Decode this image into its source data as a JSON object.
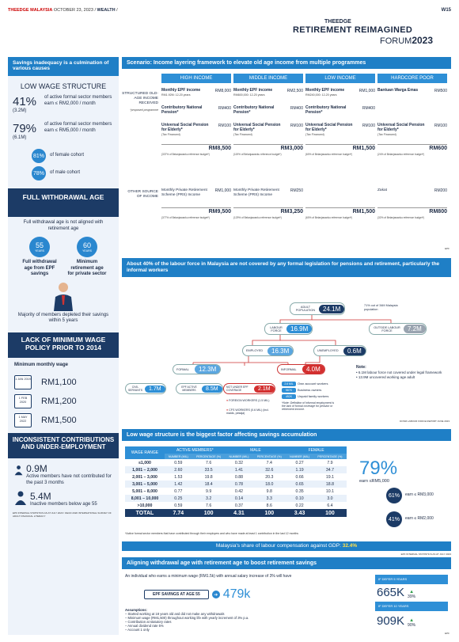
{
  "masthead": {
    "paper": "THEEDGE MALAYSIA",
    "date": "OCTOBER 23, 2023",
    "section": "WEALTH",
    "page": "W15"
  },
  "logo": {
    "brand": "THEEDGE",
    "title": "RETIREMENT REIMAGINED",
    "forum": "FORUM",
    "year": "2023"
  },
  "left": {
    "header": "Savings inadequacy is a culmination of various causes",
    "low_wage": {
      "title": "LOW WAGE STRUCTURE",
      "stat1_pct": "41%",
      "stat1_n": "(3.2M)",
      "stat1_text": "of active formal sector members earn ≤ RM2,000 / month",
      "stat2_pct": "79%",
      "stat2_n": "(6.1M)",
      "stat2_text": "of active formal sector members earn ≤ RM5,000 / month",
      "female_pct": "81%",
      "female_text": "of female cohort",
      "male_pct": "78%",
      "male_text": "of male cohort"
    },
    "withdrawal": {
      "title": "FULL WITHDRAWAL AGE",
      "text": "Full withdrawal age is not aligned with retirement age",
      "age1": "55",
      "age1_unit": "YEARS",
      "age1_label": "Full withdrawal age from EPF savings",
      "age2": "60",
      "age2_unit": "YEARS",
      "age2_label": "Minimum retirement age for private sector",
      "footer": "Majority of members depleted their savings within 5 years"
    },
    "min_wage": {
      "title": "LACK OF MINIMUM WAGE POLICY PRIOR TO 2014",
      "subtitle": "Minimum monthly wage",
      "rows": [
        {
          "date": "1 JAN 2019",
          "amount": "RM1,100"
        },
        {
          "date": "1 FEB 2020",
          "amount": "RM1,200"
        },
        {
          "date": "1 MAY 2022",
          "amount": "RM1,500"
        }
      ]
    },
    "inconsistent": {
      "title": "INCONSISTENT CONTRIBUTIONS AND UNDER-EMPLOYMENT",
      "v1": "0.9M",
      "t1": "Active members have not contributed for the past 3 months",
      "v2": "5.4M",
      "t2": "Inactive members below age 55",
      "source": "EPF INTERNAL STATISTICS AS AT JULY 2023 / OECD 2020 INTERNATIONAL SURVEY OF ADULT FINANCIAL LITERACY"
    }
  },
  "scenario": {
    "header": "Scenario: Income layering framework to elevate old age income from multiple programmes",
    "cols": [
      "HIGH INCOME",
      "MIDDLE INCOME",
      "LOW INCOME",
      "HARDCORE POOR"
    ],
    "structured_label": "STRUCTURED OLD-AGE INCOME RECEIVED",
    "structured_note": "*proposed programme",
    "other_label": "OTHER SOURCE OF INCOME",
    "high": {
      "r1": "Monthly EPF income",
      "r1s": "RM1.92M: 12-20 years",
      "r1a": "RM8,000",
      "r2": "Contributory National Pension*",
      "r2a": "RM400",
      "r3": "Universal Social Pension for Elderly*",
      "r3s": "(Tax Financed)",
      "r3a": "RM100",
      "total": "RM8,500",
      "pct": "(337% of Belanjawanku reference budget*)",
      "o1": "Monthly Private Retirement Scheme (PRS) Income",
      "o1a": "RM1,000",
      "ototal": "RM9,500",
      "opct": "(377% of Belanjawanku reference budget*)"
    },
    "middle": {
      "r1": "Monthly EPF income",
      "r1s": "RM600,000: 12-20 years",
      "r1a": "RM2,500",
      "r2": "Contributory National Pension*",
      "r2a": "RM400",
      "r3": "Universal Social Pension for Elderly*",
      "r3s": "(Tax Financed)",
      "r3a": "RM100",
      "total": "RM3,000",
      "pct": "(119% of Belanjawanku reference budget*)",
      "o1": "Monthly Private Retirement Scheme (PRS) Income",
      "o1a": "RM250",
      "ototal": "RM3,250",
      "opct": "(129% of Belanjawanku reference budget*)"
    },
    "low": {
      "r1": "Monthly EPF income",
      "r1s": "RM240,000: 12-20 years",
      "r1a": "RM1,000",
      "r2": "Contributory National Pension*",
      "r2a": "RM400",
      "r3": "Universal Social Pension for Elderly*",
      "r3s": "(Tax Financed)",
      "r3a": "RM100",
      "total": "RM1,500",
      "pct": "(60% of Belanjawanku reference budget*)",
      "ototal": "RM1,500",
      "opct": "(60% of Belanjawanku reference budget*)"
    },
    "poor": {
      "r1": "Bantuan Warga Emas",
      "r1a": "RM500",
      "r3": "Universal Social Pension for Elderly*",
      "r3s": "(Tax Financed)",
      "r3a": "RM100",
      "total": "RM600",
      "pct": "(24% of Belanjawanku reference budget*)",
      "o1": "Zakat",
      "o1a": "RM200",
      "ototal": "RM800",
      "opct": "(32% of Belanjawanku reference budget*)"
    },
    "source": "EPF"
  },
  "labour": {
    "header": "About 40% of the labour force in Malaysia are not covered by any formal legislation for pensions and retirement, particularly the informal workers",
    "adult_label": "ADULT POPULATION",
    "adult_val": "24.1M",
    "adult_note": "71% out of 34M Malaysia population",
    "labour_label": "LABOUR FORCE",
    "labour_val": "16.9M",
    "outside_label": "OUTSIDE LABOUR FORCE",
    "outside_val": "7.2M",
    "employed_label": "EMPLOYED",
    "employed_val": "16.3M",
    "unemployed_label": "UNEMPLOYED",
    "unemployed_val": "0.6M",
    "formal_label": "FORMAL",
    "formal_val": "12.3M",
    "informal_label": "INFORMAL",
    "informal_val": "4.0M",
    "civil_label": "CIVIL SERVANTS",
    "civil_val": "1.7M",
    "epf_label": "EPF ACTIVE MEMBERS",
    "epf_val": "8.5M",
    "notunder_label": "NOT UNDER EPF COVERAGE",
    "notunder_val": "2.1M",
    "foreign": "FOREIGN WORKERS (1.5 MIL)",
    "cfs": "CFS WORKERS (0.6 MIL) (incl. maids, pekaja)",
    "own_pct": "2.6 MIL",
    "own": "Own account workers",
    "biz_pct": "567K",
    "biz": "Business owners",
    "unpaid_pct": "492K",
    "unpaid": "Unpaid family workers",
    "def_note": "*Note: Definition of informal employment is the lack of formal coverage for pension or retirement income.",
    "note_title": "Note:",
    "note1": "6.1M labour force not covered under legal framework",
    "note2": "13.9M uncovered working age adult",
    "source": "DOSM LABOUR FORCE REPORT JUNE 2023"
  },
  "wage": {
    "header": "Low wage structure is the biggest factor affecting savings accumulation",
    "col_range": "WAGE RANGE",
    "g1": "ACTIVE MEMBERS*",
    "g2": "MALE",
    "g3": "FEMALE",
    "h_num": "NUMBER (MIL)",
    "h_pct": "PERCENTAGE (%)",
    "rows": [
      [
        "≤1,000",
        "0.59",
        "7.6",
        "0.32",
        "7.4",
        "0.27",
        "7.9"
      ],
      [
        "1,001 – 2,000",
        "2.60",
        "33.5",
        "1.41",
        "32.6",
        "1.19",
        "34.7"
      ],
      [
        "2,001 – 3,000",
        "1.53",
        "19.8",
        "0.88",
        "20.3",
        "0.66",
        "19.1"
      ],
      [
        "3,001 – 5,000",
        "1.42",
        "18.4",
        "0.78",
        "18.0",
        "0.65",
        "18.8"
      ],
      [
        "5,001 – 8,000",
        "0.77",
        "9.9",
        "0.42",
        "9.8",
        "0.35",
        "10.1"
      ],
      [
        "8,001 – 10,000",
        "0.25",
        "3.2",
        "0.14",
        "3.3",
        "0.10",
        "3.0"
      ],
      [
        ">10,000",
        "0.59",
        "7.6",
        "0.37",
        "8.6",
        "0.22",
        "6.4"
      ]
    ],
    "total": [
      "TOTAL",
      "7.74",
      "100",
      "4.31",
      "100",
      "3.43",
      "100"
    ],
    "big_pct": "79%",
    "big_text": "earn ≤RM5,000",
    "c1_pct": "61%",
    "c1_text": "earn ≤ RM3,000",
    "c2_pct": "41%",
    "c2_text": "earn ≤ RM2,000",
    "footnote": "*Active formal sector members that have contributed through their employers and who have made at least 1 contribution in the last 12 months",
    "share_prefix": "Malaysia's share of labour compensation against GDP:",
    "share_val": "32.4%",
    "source": "EPF INTERNAL STATISTICS AS AT JULY 2023"
  },
  "align": {
    "header": "Aligning withdrawal age with retirement age to boost retirement savings",
    "intro": "An individual who earns a minimum wage (RM1.5k) with annual salary increase of 3% will have",
    "epf_label": "EPF SAVINGS AT AGE 55",
    "epf_val": "479k",
    "defer5": "IF DEFER 5 YEARS",
    "defer5_val": "665K",
    "defer5_pct": "39%",
    "defer10": "IF DEFER 10 YEARS",
    "defer10_val": "909K",
    "defer10_pct": "90%",
    "assump_title": "Assumptions:",
    "assumptions": [
      "Started working at 18 years old and did not make any withdrawals",
      "Minimum wage (RM1,500) throughout working life with yearly increment of 3% p.a.",
      "Contribution at statutory rates",
      "Annual dividend rate 5%",
      "Account 1 only"
    ],
    "source": "EPF"
  },
  "colors": {
    "accent": "#1f7fc6",
    "navy": "#1c3b66",
    "red": "#d32f2f",
    "green": "#2e9e4a"
  }
}
